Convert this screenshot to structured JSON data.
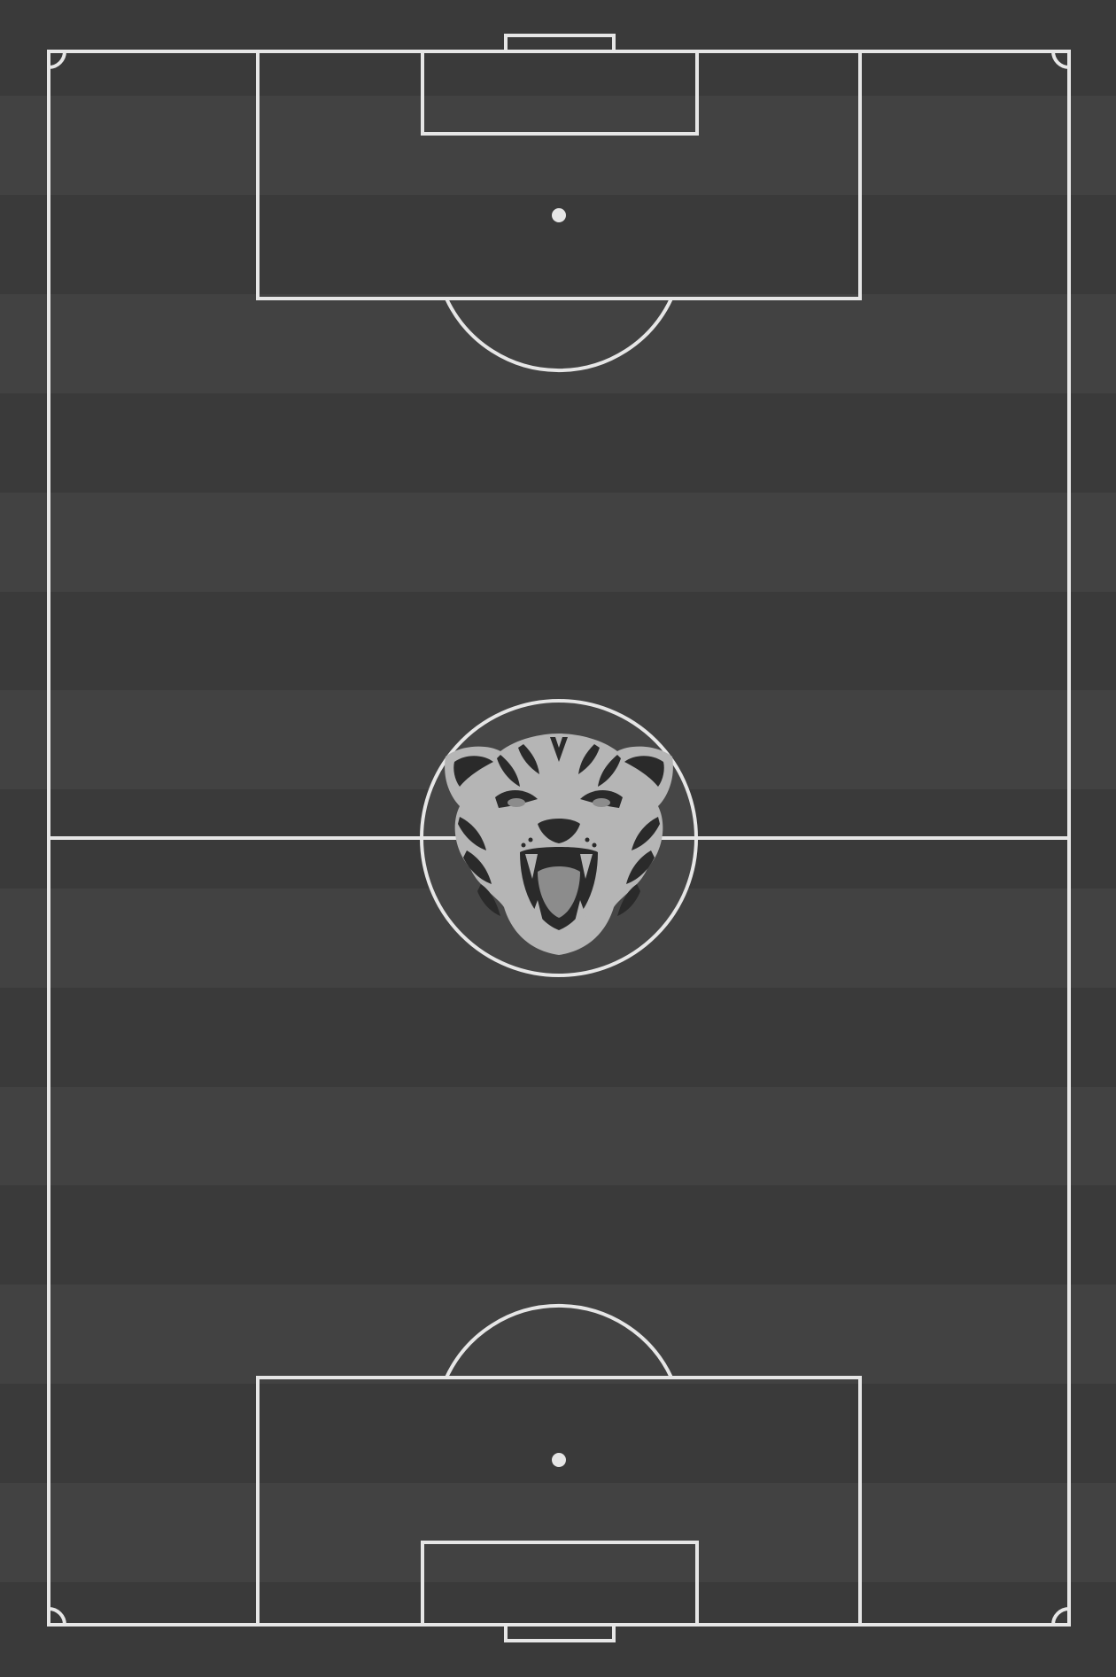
{
  "pitch": {
    "colors": {
      "stripe_dark": "#3a3a3a",
      "stripe_light": "#424242",
      "line": "#e6e6e6",
      "crest": "#b5b5b5"
    },
    "orientation": "vertical",
    "crest": {
      "icon": "tiger-head-icon"
    }
  }
}
